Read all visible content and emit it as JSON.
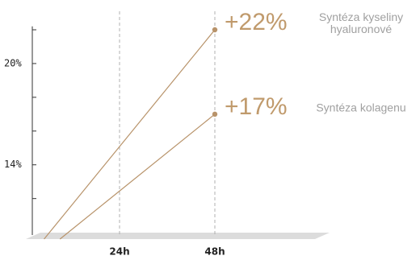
{
  "chart_data": {
    "type": "line",
    "xlim": [
      0,
      48
    ],
    "xticks": [
      {
        "value": 24,
        "label": "24h"
      },
      {
        "value": 48,
        "label": "48h"
      }
    ],
    "ylim": [
      9.6,
      22.2
    ],
    "yticks": [
      {
        "value": 20,
        "label": "20%"
      },
      {
        "value": 14,
        "label": "14%"
      }
    ],
    "yminor_ticks": [
      12,
      14,
      16,
      18,
      20,
      22
    ],
    "grid": "x",
    "series": [
      {
        "name": "Syntéza kyseliny hyaluronové",
        "color": "#b8936a",
        "x": [
          5,
          48
        ],
        "values": [
          9.6,
          22
        ],
        "value_labels": [
          null,
          "+22%"
        ]
      },
      {
        "name": "Syntéza kolagenu",
        "color": "#b8936a",
        "x": [
          9,
          48
        ],
        "values": [
          9.6,
          17
        ],
        "value_labels": [
          null,
          "+17%"
        ]
      }
    ]
  }
}
